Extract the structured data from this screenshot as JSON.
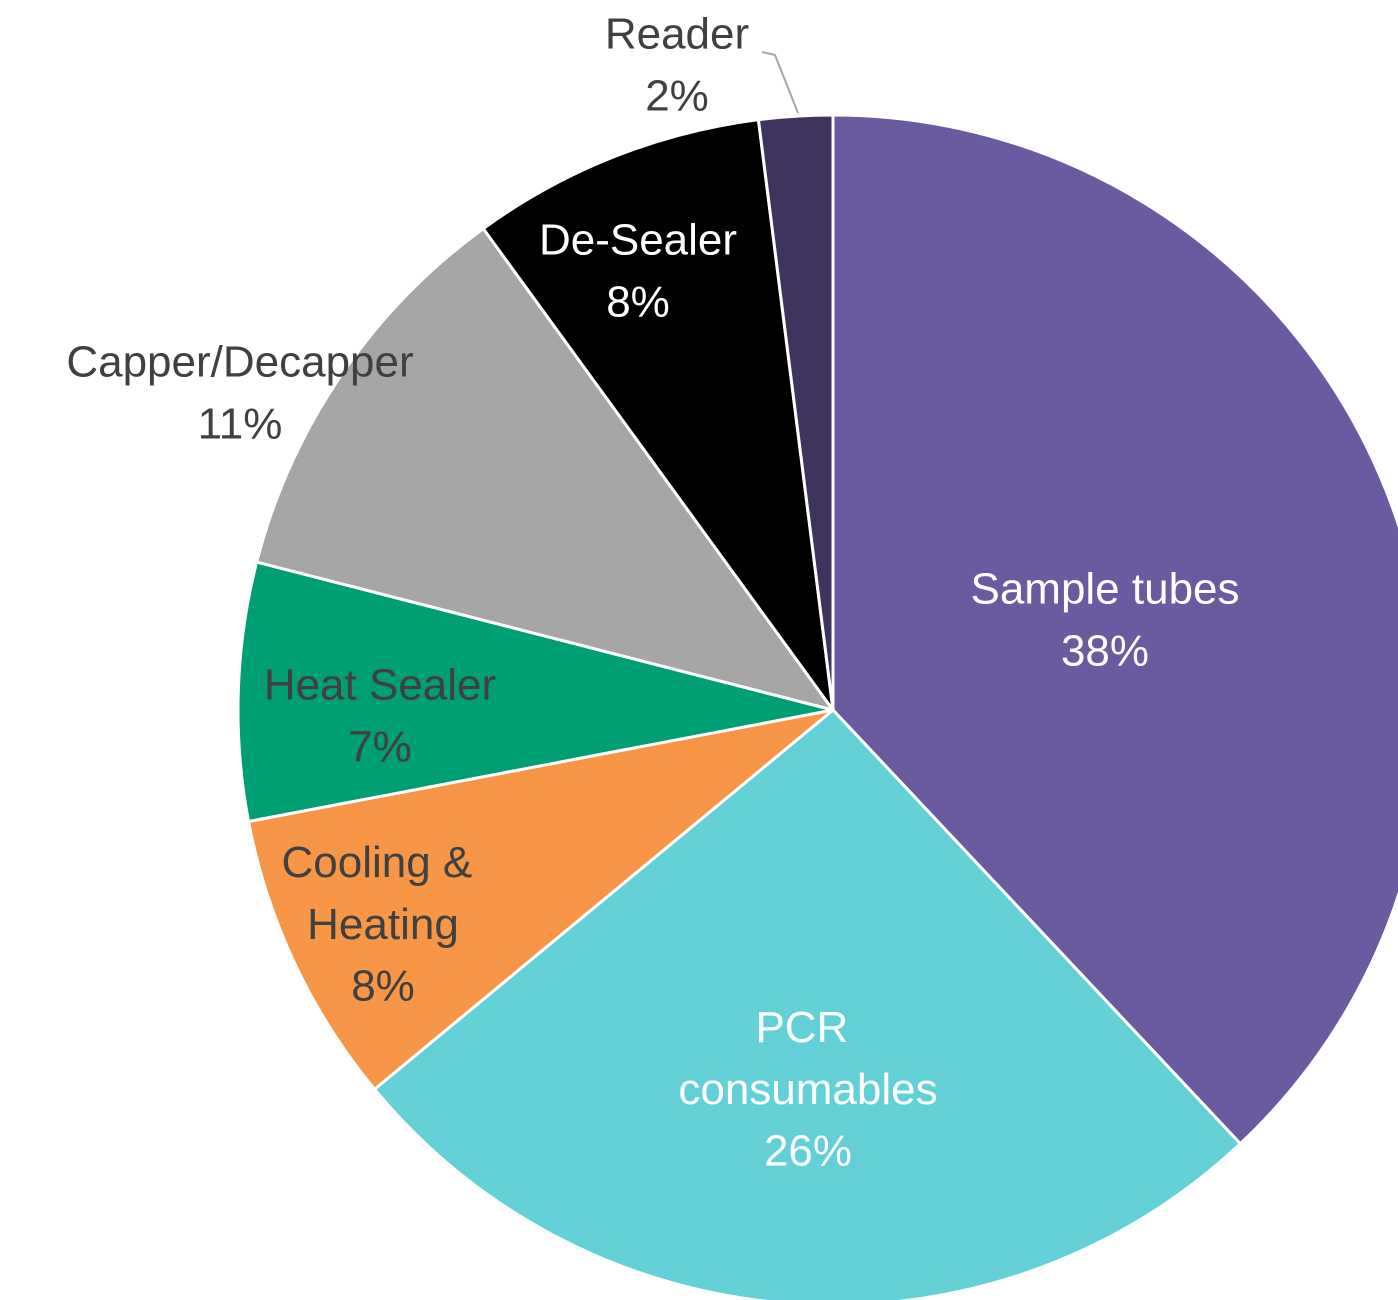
{
  "chart_data": {
    "type": "pie",
    "categories": [
      "Sample tubes",
      "PCR consumables",
      "Cooling & Heating",
      "Heat Sealer",
      "Capper/Decapper",
      "De-Sealer",
      "Reader"
    ],
    "values": [
      38,
      26,
      8,
      7,
      11,
      8,
      2
    ],
    "value_labels": [
      "38%",
      "26%",
      "8%",
      "7%",
      "11%",
      "8%",
      "2%"
    ],
    "colors": [
      "#6a5aa0",
      "#63d0d8",
      "#f79646",
      "#009e73",
      "#a6a6a6",
      "#000000",
      "#3f3360"
    ]
  }
}
